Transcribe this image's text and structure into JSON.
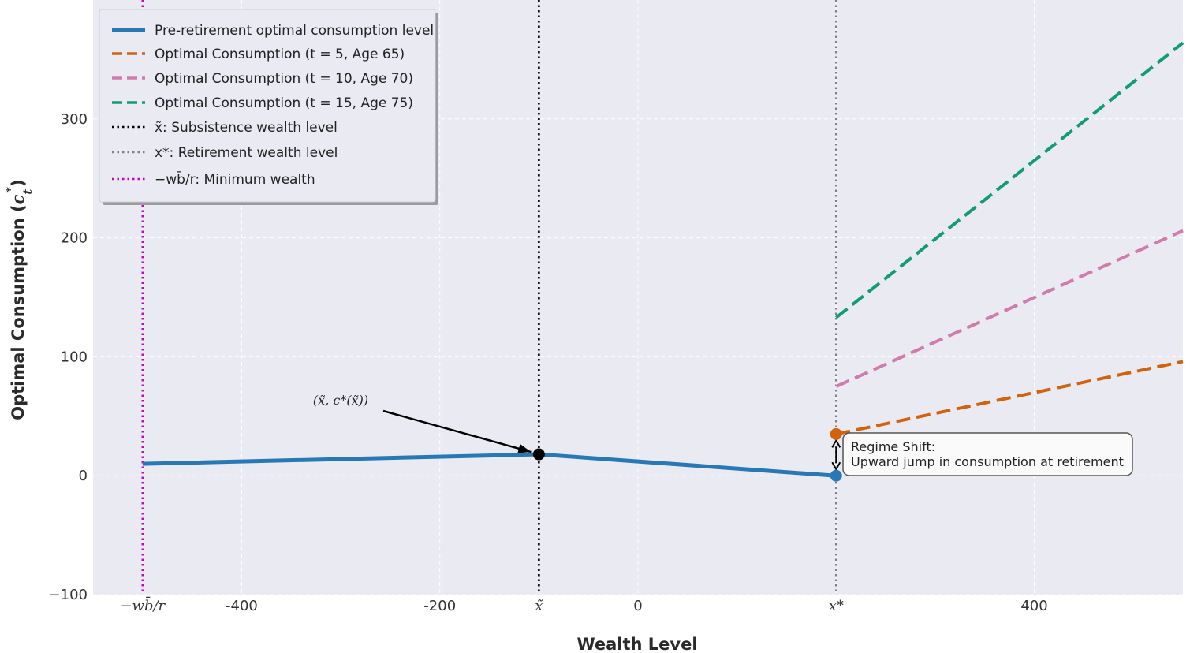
{
  "chart_data": {
    "type": "line",
    "title": "",
    "xlabel": "Wealth Level",
    "ylabel": "Optimal Consumption (c*_t)",
    "xlim": [
      -550,
      550
    ],
    "ylim": [
      -100,
      400
    ],
    "grid": true,
    "legend_position": "top-left",
    "x_ticks": [
      {
        "value": -500,
        "label": "−wb̄/r"
      },
      {
        "value": -400,
        "label": "-400"
      },
      {
        "value": -200,
        "label": "-200"
      },
      {
        "value": -100,
        "label": "x̃"
      },
      {
        "value": 0,
        "label": "0"
      },
      {
        "value": 200,
        "label": "x*"
      },
      {
        "value": 400,
        "label": "400"
      }
    ],
    "y_ticks": [
      {
        "value": -100,
        "label": "−100"
      },
      {
        "value": 0,
        "label": "0"
      },
      {
        "value": 100,
        "label": "100"
      },
      {
        "value": 200,
        "label": "200"
      },
      {
        "value": 300,
        "label": "300"
      }
    ],
    "series": [
      {
        "name": "Pre-retirement optimal consumption level",
        "style": "solid",
        "color": "#2878b5",
        "x": [
          -500,
          -100,
          200
        ],
        "y": [
          10,
          18,
          0
        ]
      },
      {
        "name": "Optimal Consumption (t = 5, Age 65)",
        "style": "dashed",
        "color": "#d2620c",
        "x": [
          200,
          550
        ],
        "y": [
          35,
          96
        ]
      },
      {
        "name": "Optimal Consumption (t = 10, Age 70)",
        "style": "dashed",
        "color": "#d07bab",
        "x": [
          200,
          550
        ],
        "y": [
          75,
          206
        ]
      },
      {
        "name": "Optimal Consumption (t = 15, Age 75)",
        "style": "dashed",
        "color": "#109c74",
        "x": [
          200,
          550
        ],
        "y": [
          133,
          364
        ]
      }
    ],
    "vertical_lines": [
      {
        "name": "x̃: Subsistence wealth level",
        "x": -100,
        "color": "#000000"
      },
      {
        "name": "x*: Retirement wealth level",
        "x": 200,
        "color": "#808080"
      },
      {
        "name": "−wb̄/r: Minimum wealth",
        "x": -500,
        "color": "#cc00cc"
      }
    ],
    "points": [
      {
        "x": -100,
        "y": 18,
        "color": "#000000"
      },
      {
        "x": 200,
        "y": 0,
        "color": "#2878b5"
      },
      {
        "x": 200,
        "y": 35,
        "color": "#d2620c"
      }
    ],
    "annotations": [
      {
        "text": "(x̃, c*(x̃))",
        "x": -100,
        "y": 18
      },
      {
        "text_line1": "Regime Shift:",
        "text_line2": "Upward jump in consumption at retirement",
        "x": 200,
        "y": 17
      }
    ]
  }
}
